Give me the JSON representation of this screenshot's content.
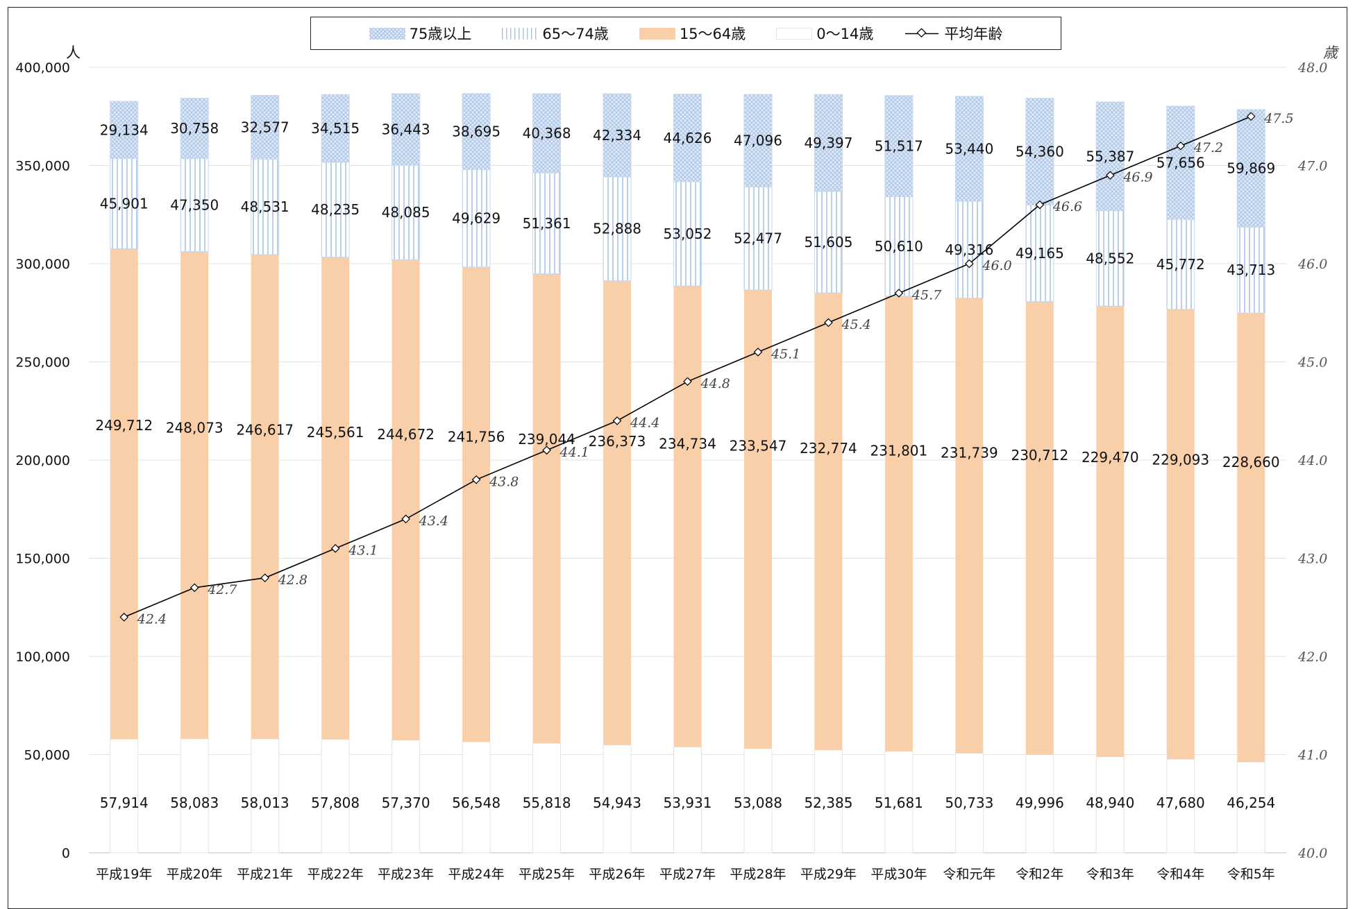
{
  "chart_data": {
    "type": "bar",
    "stacked": true,
    "categories": [
      "平成19年",
      "平成20年",
      "平成21年",
      "平成22年",
      "平成23年",
      "平成24年",
      "平成25年",
      "平成26年",
      "平成27年",
      "平成28年",
      "平成29年",
      "平成30年",
      "令和元年",
      "令和2年",
      "令和3年",
      "令和4年",
      "令和5年"
    ],
    "series": [
      {
        "name": "0〜14歳",
        "color": "#ffffff",
        "values": [
          57914,
          58083,
          58013,
          57808,
          57370,
          56548,
          55818,
          54943,
          53931,
          53088,
          52385,
          51681,
          50733,
          49996,
          48940,
          47680,
          46254
        ],
        "labels": [
          "57,914",
          "58,083",
          "58,013",
          "57,808",
          "57,370",
          "56,548",
          "55,818",
          "54,943",
          "53,931",
          "53,088",
          "52,385",
          "51,681",
          "50,733",
          "49,996",
          "48,940",
          "47,680",
          "46,254"
        ]
      },
      {
        "name": "15〜64歳",
        "color": "#f9cfa9",
        "values": [
          249712,
          248073,
          246617,
          245561,
          244672,
          241756,
          239044,
          236373,
          234734,
          233547,
          232774,
          231801,
          231739,
          230712,
          229470,
          229093,
          228660
        ],
        "labels": [
          "249,712",
          "248,073",
          "246,617",
          "245,561",
          "244,672",
          "241,756",
          "239,044",
          "236,373",
          "234,734",
          "233,547",
          "232,774",
          "231,801",
          "231,739",
          "230,712",
          "229,470",
          "229,093",
          "228,660"
        ]
      },
      {
        "name": "65〜74歳",
        "color": "#a9c3e6",
        "values": [
          45901,
          47350,
          48531,
          48235,
          48085,
          49629,
          51361,
          52888,
          53052,
          52477,
          51605,
          50610,
          49316,
          49165,
          48552,
          45772,
          43713
        ],
        "labels": [
          "45,901",
          "47,350",
          "48,531",
          "48,235",
          "48,085",
          "49,629",
          "51,361",
          "52,888",
          "53,052",
          "52,477",
          "51,605",
          "50,610",
          "49,316",
          "49,165",
          "48,552",
          "45,772",
          "43,713"
        ]
      },
      {
        "name": "75歳以上",
        "color": "#a9c3e6",
        "values": [
          29134,
          30758,
          32577,
          34515,
          36443,
          38695,
          40368,
          42334,
          44626,
          47096,
          49397,
          51517,
          53440,
          54360,
          55387,
          57656,
          59869
        ],
        "labels": [
          "29,134",
          "30,758",
          "32,577",
          "34,515",
          "36,443",
          "38,695",
          "40,368",
          "42,334",
          "44,626",
          "47,096",
          "49,397",
          "51,517",
          "53,440",
          "54,360",
          "55,387",
          "57,656",
          "59,869"
        ]
      }
    ],
    "line_series": {
      "name": "平均年齢",
      "axis": "right",
      "color": "#000000",
      "values": [
        42.4,
        42.7,
        42.8,
        43.1,
        43.4,
        43.8,
        44.1,
        44.4,
        44.8,
        45.1,
        45.4,
        45.7,
        46.0,
        46.6,
        46.9,
        47.2,
        47.5
      ],
      "labels": [
        "42.4",
        "42.7",
        "42.8",
        "43.1",
        "43.4",
        "43.8",
        "44.1",
        "44.4",
        "44.8",
        "45.1",
        "45.4",
        "45.7",
        "46.0",
        "46.6",
        "46.9",
        "47.2",
        "47.5"
      ]
    },
    "ylim": [
      0,
      400000
    ],
    "y_ticks": [
      0,
      50000,
      100000,
      150000,
      200000,
      250000,
      300000,
      350000,
      400000
    ],
    "y_tick_labels": [
      "0",
      "50,000",
      "100,000",
      "150,000",
      "200,000",
      "250,000",
      "300,000",
      "350,000",
      "400,000"
    ],
    "y2lim": [
      40.0,
      48.0
    ],
    "y2_ticks": [
      40,
      41,
      42,
      43,
      44,
      45,
      46,
      47,
      48
    ],
    "y2_tick_labels": [
      "40.0",
      "41.0",
      "42.0",
      "43.0",
      "44.0",
      "45.0",
      "46.0",
      "47.0",
      "48.0"
    ],
    "ylabel": "人",
    "y2label": "歳",
    "grid": true,
    "legend_position": "top-center"
  },
  "legend": {
    "items": [
      {
        "key": "75",
        "label": "75歳以上"
      },
      {
        "key": "65",
        "label": "65〜74歳"
      },
      {
        "key": "15",
        "label": "15〜64歳"
      },
      {
        "key": "0",
        "label": "0〜14歳"
      },
      {
        "key": "line",
        "label": "平均年齢"
      }
    ]
  }
}
